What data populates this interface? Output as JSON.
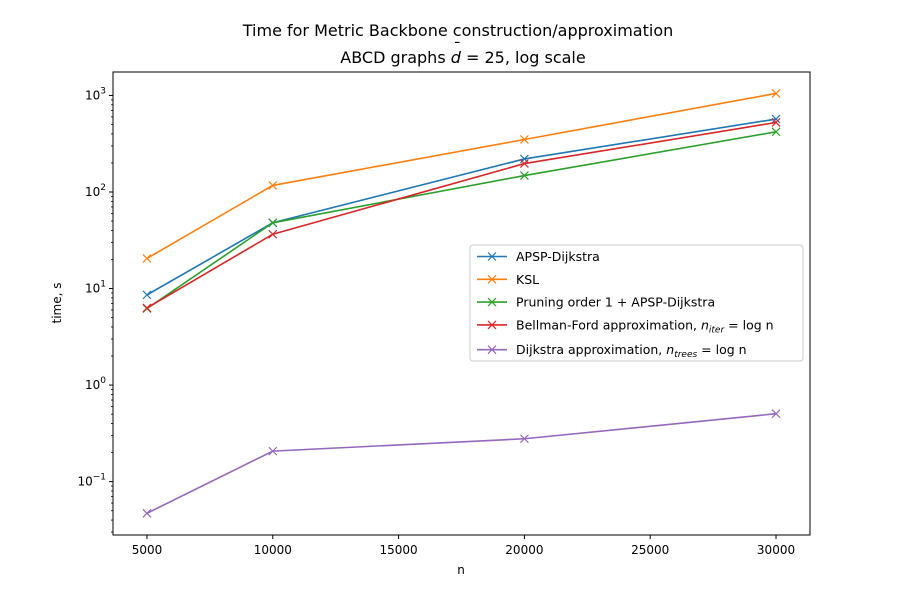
{
  "chart_data": {
    "type": "line",
    "title": "Time for Metric Backbone construction/approximation",
    "subtitle_parts": {
      "prefix": "ABCD graphs ",
      "d": "d",
      "bar": "¯",
      "eq": " = 25, log scale"
    },
    "xlabel": "n",
    "ylabel": "time, s",
    "xlim": [
      3650,
      31350
    ],
    "ylim": [
      0.028,
      1750
    ],
    "yscale": "log",
    "grid": false,
    "legend_position": "center-right",
    "x_ticks": [
      {
        "value": 5000,
        "label": "5000"
      },
      {
        "value": 10000,
        "label": "10000"
      },
      {
        "value": 15000,
        "label": "15000"
      },
      {
        "value": 20000,
        "label": "20000"
      },
      {
        "value": 25000,
        "label": "25000"
      },
      {
        "value": 30000,
        "label": "30000"
      }
    ],
    "y_ticks": [
      {
        "value": 0.1,
        "base": "10",
        "exp": "−1"
      },
      {
        "value": 1,
        "base": "10",
        "exp": "0"
      },
      {
        "value": 10,
        "base": "10",
        "exp": "1"
      },
      {
        "value": 100,
        "base": "10",
        "exp": "2"
      },
      {
        "value": 1000,
        "base": "10",
        "exp": "3"
      }
    ],
    "x": [
      5000,
      10000,
      20000,
      30000
    ],
    "series": [
      {
        "name": "APSP-Dijkstra",
        "color": "#1f77b4",
        "values": [
          8.6,
          48,
          220,
          570
        ],
        "marker": "x"
      },
      {
        "name": "KSL",
        "color": "#ff7f0e",
        "values": [
          20.5,
          117,
          350,
          1050
        ],
        "marker": "x"
      },
      {
        "name": "Pruning order 1 + APSP-Dijkstra",
        "color": "#2ca02c",
        "values": [
          6.2,
          48,
          148,
          420
        ],
        "marker": "x"
      },
      {
        "name": "Bellman-Ford approximation, ",
        "math": {
          "var": "n",
          "sub": "iter",
          "rest": " = log n"
        },
        "color": "#d62728",
        "values": [
          6.3,
          36.5,
          197,
          525
        ],
        "marker": "x"
      },
      {
        "name": "Dijkstra approximation, ",
        "math": {
          "var": "n",
          "sub": "trees",
          "rest": " = log n"
        },
        "color": "#9467bd",
        "values": [
          0.047,
          0.207,
          0.278,
          0.505
        ],
        "marker": "x"
      }
    ]
  }
}
